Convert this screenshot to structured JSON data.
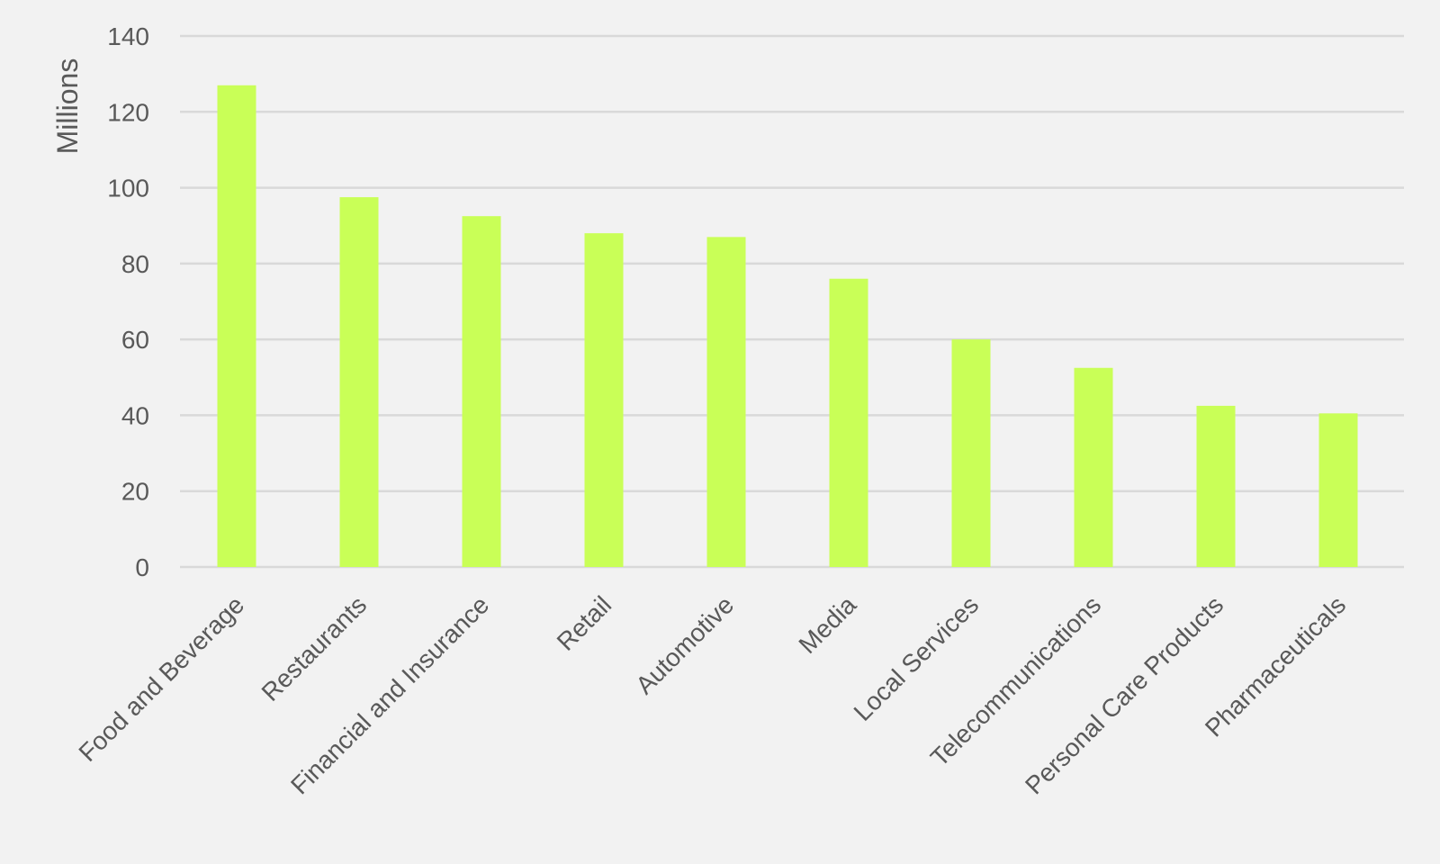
{
  "chart_data": {
    "type": "bar",
    "title": "",
    "xlabel": "",
    "ylabel": "Millions",
    "ylim": [
      0,
      140
    ],
    "yticks": [
      "0",
      "20",
      "40",
      "60",
      "80",
      "100",
      "120",
      "140"
    ],
    "grid": true,
    "legend": "none",
    "bar_color": "#c9ff57",
    "categories": [
      "Food and Beverage",
      "Restaurants",
      "Financial and Insurance",
      "Retail",
      "Automotive",
      "Media",
      "Local Services",
      "Telecommunications",
      "Personal Care Products",
      "Pharmaceuticals"
    ],
    "values": [
      127,
      97.5,
      92.5,
      88,
      87,
      76,
      60,
      52.5,
      42.5,
      40.5
    ]
  }
}
